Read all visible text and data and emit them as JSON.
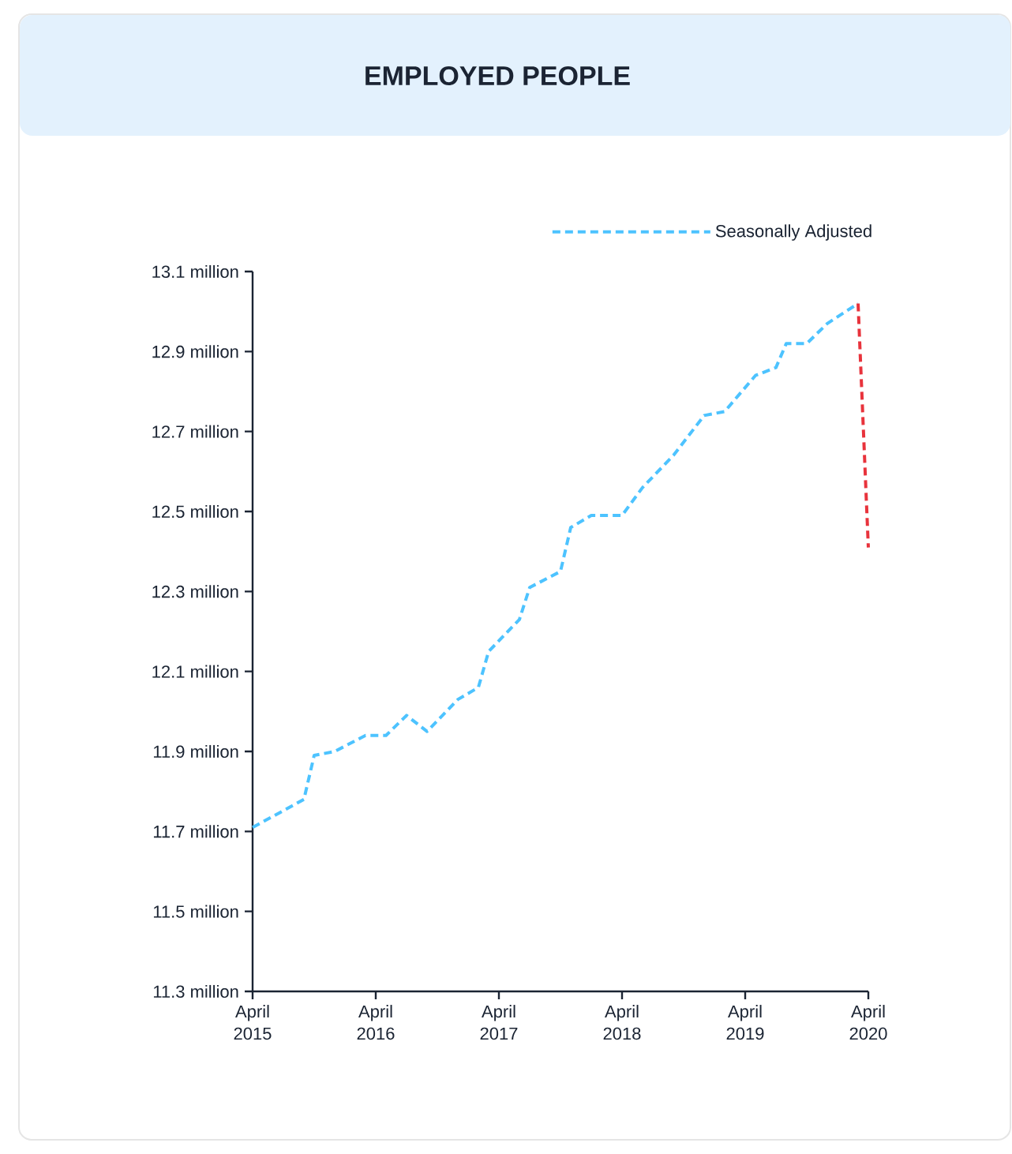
{
  "chart_data": {
    "type": "line",
    "title": "EMPLOYED PEOPLE",
    "x": [
      "2015-04",
      "2015-09",
      "2015-10",
      "2015-12",
      "2016-03",
      "2016-05",
      "2016-07",
      "2016-09",
      "2016-12",
      "2017-02",
      "2017-03",
      "2017-06",
      "2017-07",
      "2017-10",
      "2017-11",
      "2018-01",
      "2018-04",
      "2018-06",
      "2018-09",
      "2018-12",
      "2019-02",
      "2019-05",
      "2019-07",
      "2019-08",
      "2019-10",
      "2019-12",
      "2020-03"
    ],
    "series": [
      {
        "name": "Seasonally Adjusted",
        "color": "#4dc3ff",
        "values": [
          11.71,
          11.78,
          11.89,
          11.9,
          11.94,
          11.94,
          11.99,
          11.95,
          12.03,
          12.06,
          12.15,
          12.23,
          12.31,
          12.35,
          12.46,
          12.49,
          12.49,
          12.56,
          12.64,
          12.74,
          12.75,
          12.84,
          12.86,
          12.92,
          12.92,
          12.97,
          13.02
        ]
      },
      {
        "color": "#e8333c",
        "x": [
          "2020-03",
          "2020-04"
        ],
        "values": [
          13.02,
          12.41
        ]
      }
    ],
    "xlim": [
      "2015-04",
      "2020-04"
    ],
    "xticks": [
      {
        "value": "2015-04",
        "label": "April 2015"
      },
      {
        "value": "2016-04",
        "label": "April 2016"
      },
      {
        "value": "2017-04",
        "label": "April 2017"
      },
      {
        "value": "2018-04",
        "label": "April 2018"
      },
      {
        "value": "2019-04",
        "label": "April 2019"
      },
      {
        "value": "2020-04",
        "label": "April 2020"
      }
    ],
    "ylim": [
      11.3,
      13.1
    ],
    "yticks": [
      {
        "value": 11.3,
        "label": "11.3 million"
      },
      {
        "value": 11.5,
        "label": "11.5 million"
      },
      {
        "value": 11.7,
        "label": "11.7 million"
      },
      {
        "value": 11.9,
        "label": "11.9 million"
      },
      {
        "value": 12.1,
        "label": "12.1 million"
      },
      {
        "value": 12.3,
        "label": "12.3 million"
      },
      {
        "value": 12.5,
        "label": "12.5 million"
      },
      {
        "value": 12.7,
        "label": "12.7 million"
      },
      {
        "value": 12.9,
        "label": "12.9 million"
      },
      {
        "value": 13.1,
        "label": "13.1 million"
      }
    ],
    "legend": "top right",
    "line_style": "dashed"
  }
}
